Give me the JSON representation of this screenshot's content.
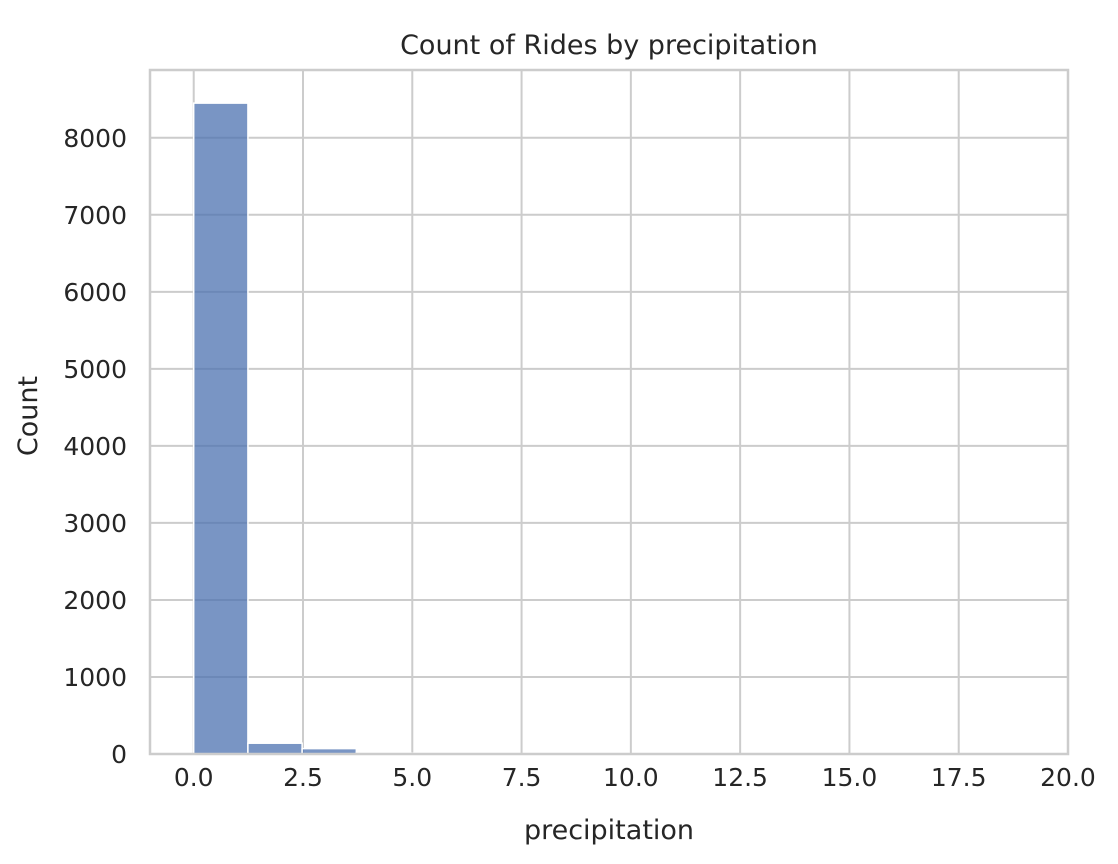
{
  "chart_data": {
    "type": "bar",
    "title": "Count of Rides by precipitation",
    "xlabel": "precipitation",
    "ylabel": "Count",
    "xlim": [
      -1.0,
      20.0
    ],
    "ylim": [
      0,
      8880
    ],
    "xticks": [
      "0.0",
      "2.5",
      "5.0",
      "7.5",
      "10.0",
      "12.5",
      "15.0",
      "17.5",
      "20.0"
    ],
    "xtick_values": [
      0,
      2.5,
      5,
      7.5,
      10,
      12.5,
      15,
      17.5,
      20
    ],
    "yticks": [
      "0",
      "1000",
      "2000",
      "3000",
      "4000",
      "5000",
      "6000",
      "7000",
      "8000"
    ],
    "ytick_values": [
      0,
      1000,
      2000,
      3000,
      4000,
      5000,
      6000,
      7000,
      8000
    ],
    "bins": [
      {
        "x0": 0.0,
        "x1": 1.24,
        "count": 8450
      },
      {
        "x0": 1.24,
        "x1": 2.48,
        "count": 140
      },
      {
        "x0": 2.48,
        "x1": 3.72,
        "count": 70
      },
      {
        "x0": 3.72,
        "x1": 4.96,
        "count": 20
      },
      {
        "x0": 4.96,
        "x1": 6.2,
        "count": 10
      },
      {
        "x0": 6.2,
        "x1": 7.44,
        "count": 5
      },
      {
        "x0": 7.44,
        "x1": 8.68,
        "count": 4
      },
      {
        "x0": 8.68,
        "x1": 9.92,
        "count": 3
      },
      {
        "x0": 9.92,
        "x1": 11.16,
        "count": 2
      },
      {
        "x0": 11.16,
        "x1": 12.4,
        "count": 2
      },
      {
        "x0": 12.4,
        "x1": 13.64,
        "count": 1
      },
      {
        "x0": 13.64,
        "x1": 14.88,
        "count": 1
      },
      {
        "x0": 14.88,
        "x1": 16.12,
        "count": 1
      },
      {
        "x0": 16.12,
        "x1": 17.36,
        "count": 1
      },
      {
        "x0": 17.36,
        "x1": 18.6,
        "count": 0
      },
      {
        "x0": 18.6,
        "x1": 19.84,
        "count": 1
      }
    ],
    "grid": true,
    "bar_color": "#4c72b0",
    "grid_color": "#cccccc",
    "spine_color": "#cccccc"
  }
}
